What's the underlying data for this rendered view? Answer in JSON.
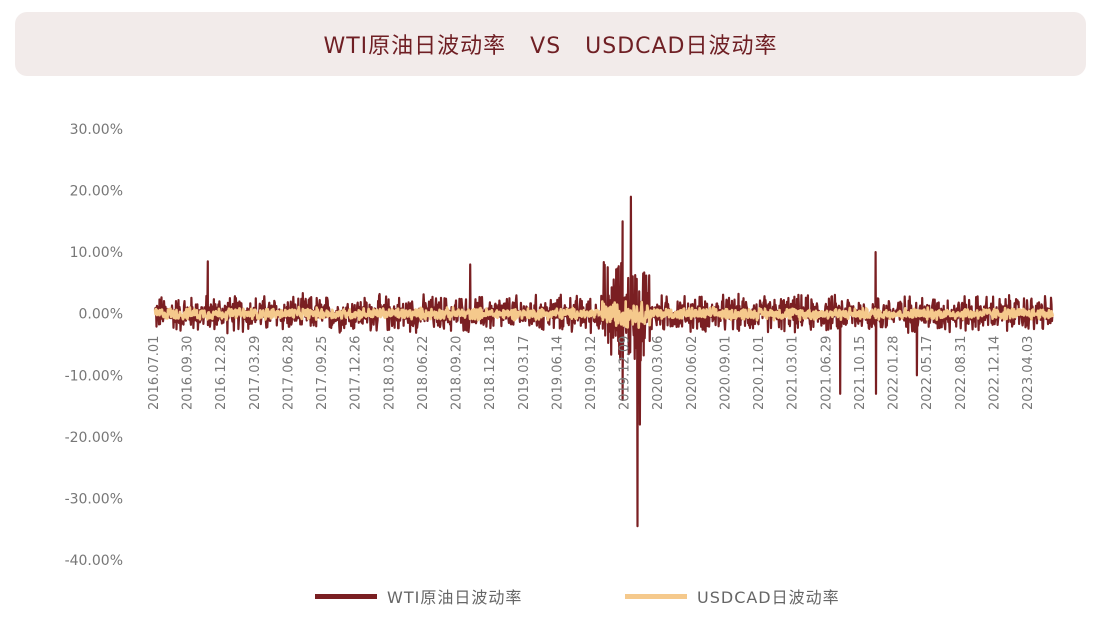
{
  "title": "WTI原油日波动率   VS   USDCAD日波动率",
  "colors": {
    "background": "#ffffff",
    "title_bg": "#f2ebea",
    "title_text": "#6f1f24",
    "wti": "#7a1f22",
    "usdcad": "#f5c98c",
    "axis_text": "#777777"
  },
  "legend": [
    {
      "label": "WTI原油日波动率",
      "color": "#7a1f22"
    },
    {
      "label": "USDCAD日波动率",
      "color": "#f5c98c"
    }
  ],
  "chart_data": {
    "type": "line",
    "title": "WTI原油日波动率   VS   USDCAD日波动率",
    "xlabel": "",
    "ylabel": "",
    "ylim": [
      -0.4,
      0.3
    ],
    "y_ticks": [
      "30.00%",
      "20.00%",
      "10.00%",
      "0.00%",
      "-10.00%",
      "-20.00%",
      "-30.00%",
      "-40.00%"
    ],
    "y_tick_values": [
      0.3,
      0.2,
      0.1,
      0.0,
      -0.1,
      -0.2,
      -0.3,
      -0.4
    ],
    "x_tick_labels": [
      "2016.07.01",
      "2016.09.30",
      "2016.12.28",
      "2017.03.29",
      "2017.06.28",
      "2017.09.25",
      "2017.12.26",
      "2018.03.26",
      "2018.06.22",
      "2018.09.20",
      "2018.12.18",
      "2019.03.17",
      "2019.06.14",
      "2019.09.12",
      "2019.12.09",
      "2020.03.06",
      "2020.06.02",
      "2020.09.01",
      "2020.12.01",
      "2021.03.01",
      "2021.06.29",
      "2021.10.15",
      "2022.01.28",
      "2022.05.17",
      "2022.08.31",
      "2022.12.14",
      "2023.04.03"
    ],
    "legend_position": "bottom",
    "grid": false,
    "series": [
      {
        "name": "WTI原油日波动率",
        "color": "#7a1f22",
        "baseline_amplitude": 0.025,
        "notable_points": [
          {
            "date": "2016.11.30",
            "value": 0.085
          },
          {
            "date": "2018.12.26",
            "value": 0.08
          },
          {
            "date": "2020.03.09",
            "value": 0.15
          },
          {
            "date": "2020.03.09",
            "value": -0.14
          },
          {
            "date": "2020.04.02",
            "value": 0.19
          },
          {
            "date": "2020.04.21",
            "value": -0.345
          },
          {
            "date": "2020.04.28",
            "value": -0.18
          },
          {
            "date": "2022.03.09",
            "value": -0.13
          },
          {
            "date": "2022.03.08",
            "value": 0.1
          },
          {
            "date": "2021.11.26",
            "value": -0.13
          },
          {
            "date": "2022.07.05",
            "value": -0.1
          }
        ]
      },
      {
        "name": "USDCAD日波动率",
        "color": "#f5c98c",
        "baseline_amplitude": 0.008,
        "notable_points": [
          {
            "date": "2020.03.18",
            "value": 0.02
          },
          {
            "date": "2020.03.19",
            "value": -0.018
          }
        ]
      }
    ]
  }
}
